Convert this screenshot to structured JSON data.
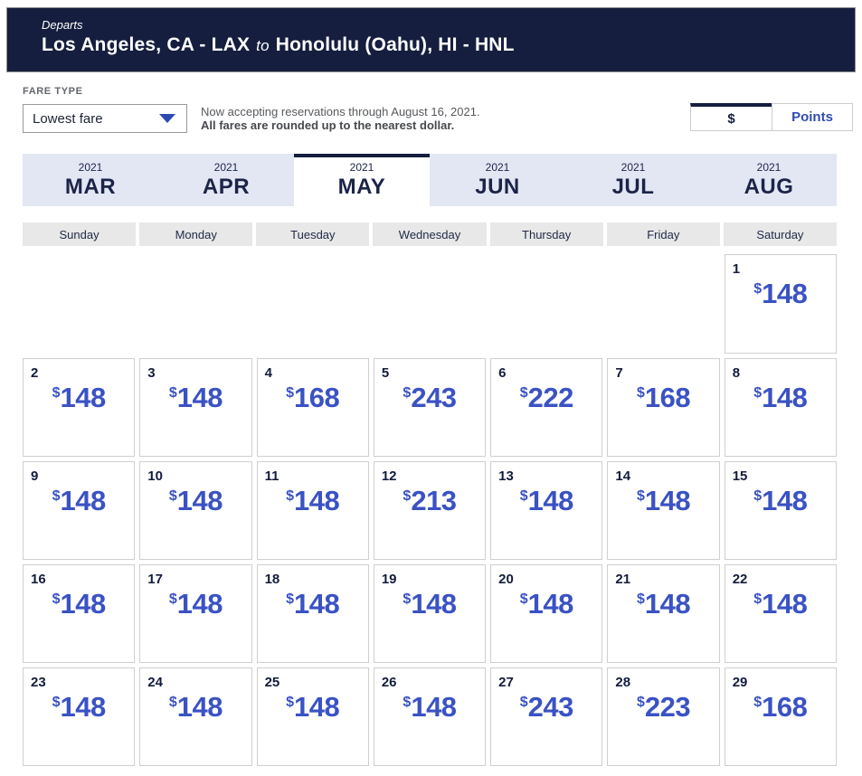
{
  "header": {
    "departs_label": "Departs",
    "origin": "Los Angeles, CA - LAX",
    "to_label": "to",
    "destination": "Honolulu (Oahu), HI - HNL"
  },
  "fare_type": {
    "label": "FARE TYPE",
    "selected": "Lowest fare",
    "dropdown_icon": "caret-down-icon"
  },
  "notice": {
    "line1": "Now accepting reservations through August 16, 2021.",
    "line2": "All fares are rounded up to the nearest dollar."
  },
  "currency_toggle": {
    "options": [
      {
        "label": "$",
        "name": "dollars",
        "active": true
      },
      {
        "label": "Points",
        "name": "points",
        "active": false
      }
    ]
  },
  "month_tabs": [
    {
      "year": "2021",
      "label": "MAR",
      "active": false
    },
    {
      "year": "2021",
      "label": "APR",
      "active": false
    },
    {
      "year": "2021",
      "label": "MAY",
      "active": true
    },
    {
      "year": "2021",
      "label": "JUN",
      "active": false
    },
    {
      "year": "2021",
      "label": "JUL",
      "active": false
    },
    {
      "year": "2021",
      "label": "AUG",
      "active": false
    }
  ],
  "weekdays": [
    "Sunday",
    "Monday",
    "Tuesday",
    "Wednesday",
    "Thursday",
    "Friday",
    "Saturday"
  ],
  "calendar": {
    "currency_symbol": "$",
    "weeks": [
      [
        null,
        null,
        null,
        null,
        null,
        null,
        {
          "day": 1,
          "price": 148
        }
      ],
      [
        {
          "day": 2,
          "price": 148
        },
        {
          "day": 3,
          "price": 148
        },
        {
          "day": 4,
          "price": 168
        },
        {
          "day": 5,
          "price": 243
        },
        {
          "day": 6,
          "price": 222
        },
        {
          "day": 7,
          "price": 168
        },
        {
          "day": 8,
          "price": 148
        }
      ],
      [
        {
          "day": 9,
          "price": 148
        },
        {
          "day": 10,
          "price": 148
        },
        {
          "day": 11,
          "price": 148
        },
        {
          "day": 12,
          "price": 213
        },
        {
          "day": 13,
          "price": 148
        },
        {
          "day": 14,
          "price": 148
        },
        {
          "day": 15,
          "price": 148
        }
      ],
      [
        {
          "day": 16,
          "price": 148
        },
        {
          "day": 17,
          "price": 148
        },
        {
          "day": 18,
          "price": 148
        },
        {
          "day": 19,
          "price": 148
        },
        {
          "day": 20,
          "price": 148
        },
        {
          "day": 21,
          "price": 148
        },
        {
          "day": 22,
          "price": 148
        }
      ],
      [
        {
          "day": 23,
          "price": 148
        },
        {
          "day": 24,
          "price": 148
        },
        {
          "day": 25,
          "price": 148
        },
        {
          "day": 26,
          "price": 148
        },
        {
          "day": 27,
          "price": 243
        },
        {
          "day": 28,
          "price": 223
        },
        {
          "day": 29,
          "price": 168
        }
      ]
    ]
  },
  "colors": {
    "header_navy": "#151e3e",
    "tab_text_navy": "#1b2448",
    "tab_inactive_bg": "#e3e7f4",
    "price_blue": "#3a52c3",
    "points_blue": "#304cb2",
    "weekday_bg": "#e8e8e8",
    "cell_border": "#cfcfcf"
  }
}
